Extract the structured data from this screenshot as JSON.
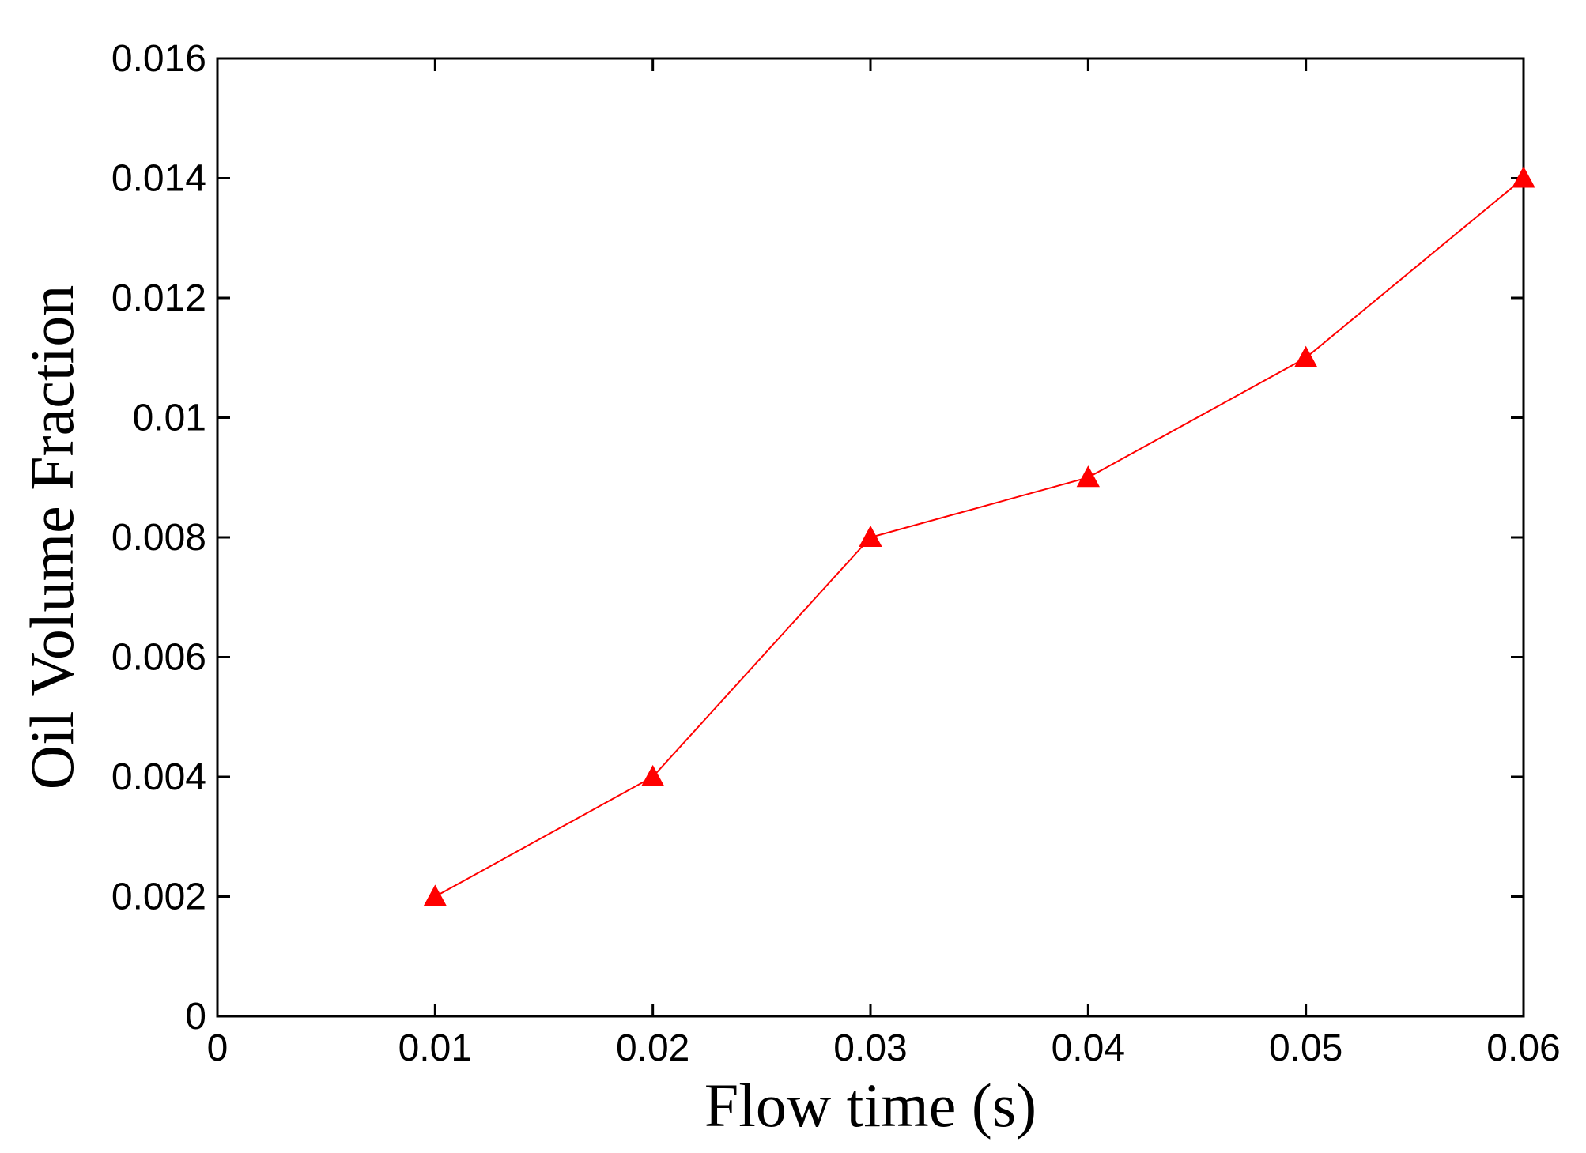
{
  "chart_data": {
    "type": "line",
    "title": "",
    "xlabel": "Flow time (s)",
    "ylabel": "Oil Volume Fraction",
    "xlim": [
      0,
      0.06
    ],
    "ylim": [
      0,
      0.016
    ],
    "x_ticks": [
      "0",
      "0.01",
      "0.02",
      "0.03",
      "0.04",
      "0.05",
      "0.06"
    ],
    "y_ticks": [
      "0",
      "0.002",
      "0.004",
      "0.006",
      "0.008",
      "0.01",
      "0.012",
      "0.014",
      "0.016"
    ],
    "grid": false,
    "legend": "none",
    "series": [
      {
        "color": "#ff0000",
        "marker": "triangle",
        "x": [
          0.01,
          0.02,
          0.03,
          0.04,
          0.05,
          0.06
        ],
        "y": [
          0.002,
          0.004,
          0.008,
          0.009,
          0.011,
          0.014
        ]
      }
    ]
  }
}
